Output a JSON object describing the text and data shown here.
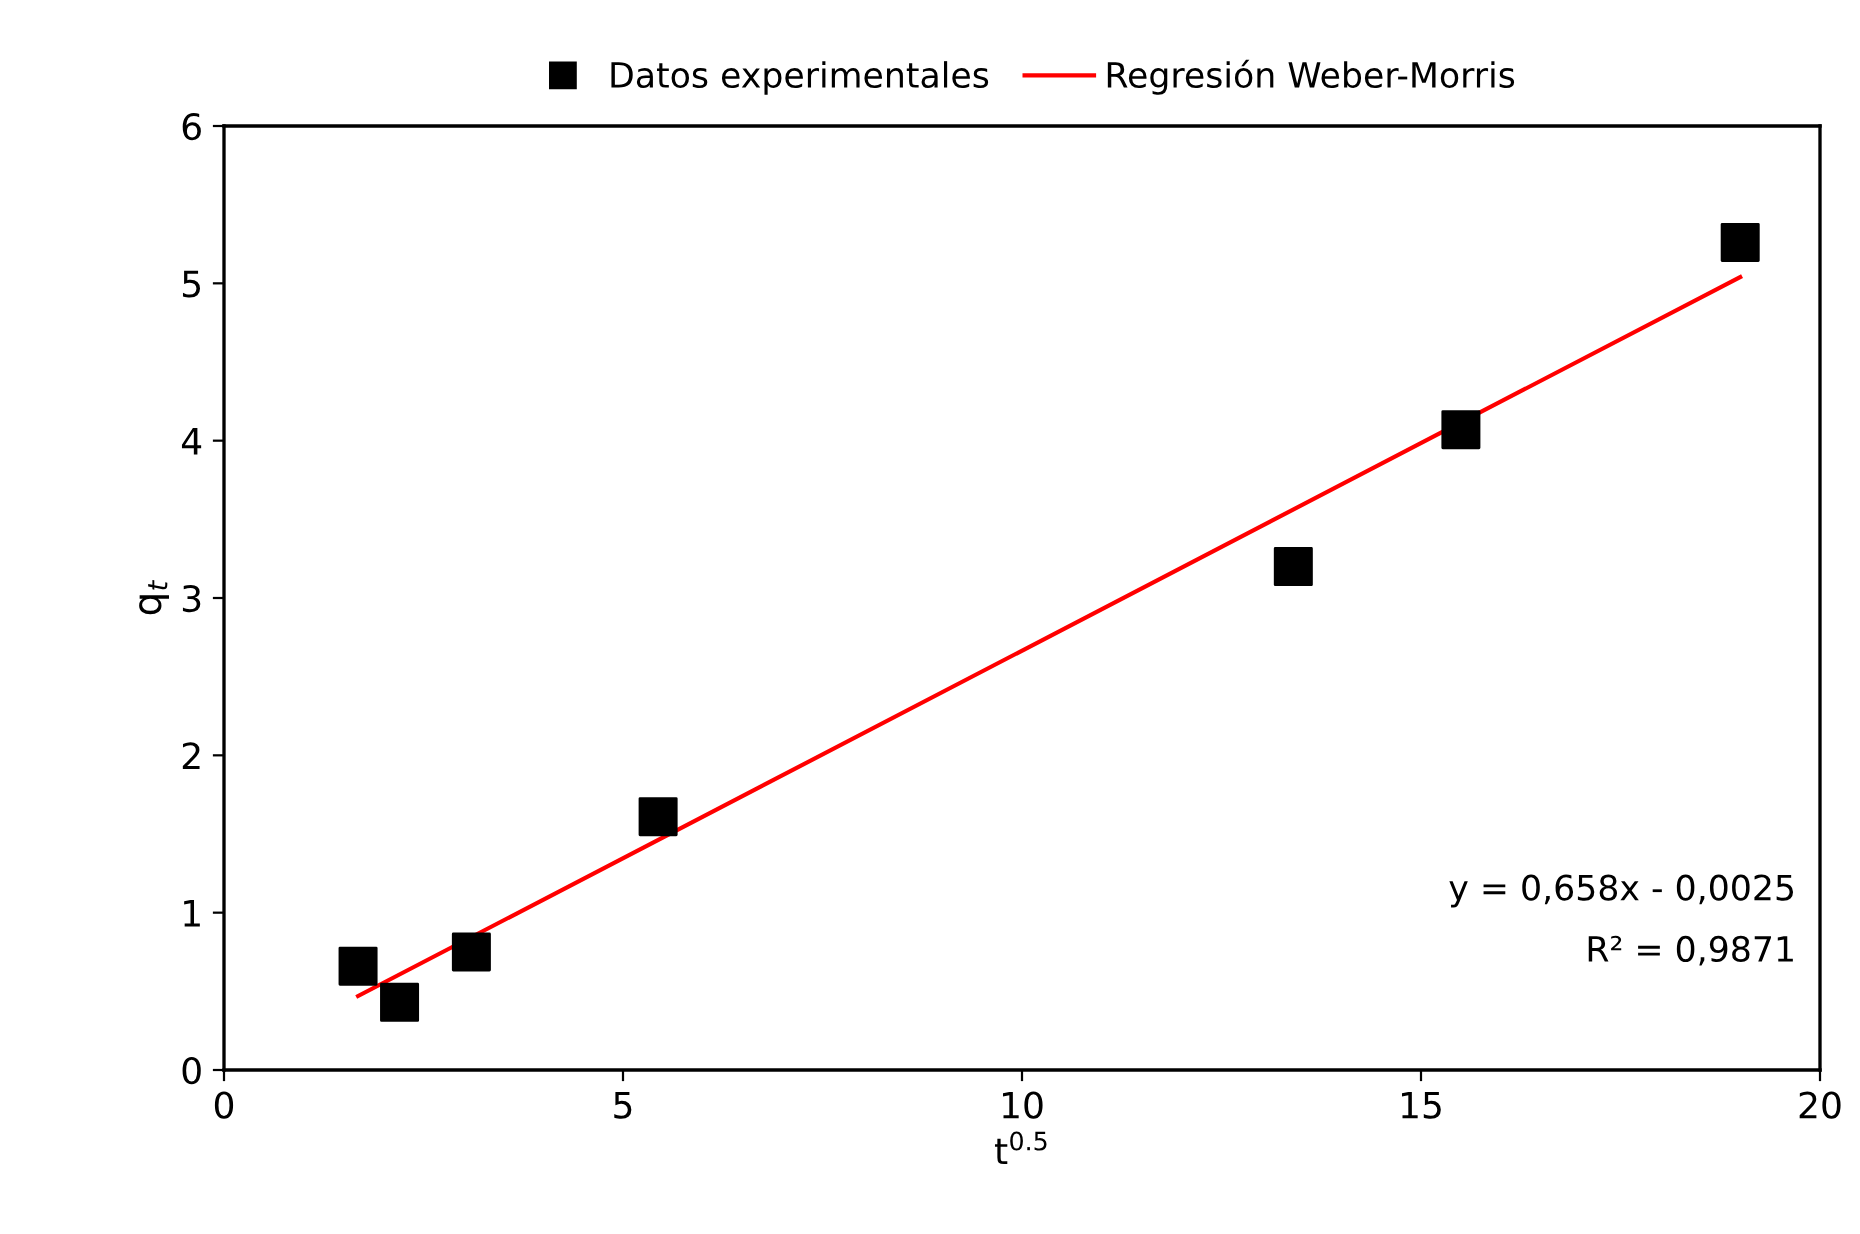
{
  "chart_data": {
    "type": "scatter",
    "xlabel": "t$^{0.5}$",
    "ylabel": "q$_{t}$",
    "xlim": [
      0,
      20
    ],
    "xticks": [
      0,
      5,
      10,
      15,
      20
    ],
    "ylim": [
      0,
      6
    ],
    "yticks": [
      0,
      1,
      2,
      3,
      4,
      5,
      6
    ],
    "grid": false,
    "legend": "top",
    "series": [
      {
        "name": "Datos experimentales",
        "marker": "square",
        "color": "#000000",
        "x": [
          1.68,
          2.2,
          3.1,
          5.44,
          13.4,
          15.5,
          19.0
        ],
        "values": [
          0.66,
          0.43,
          0.75,
          1.61,
          3.2,
          4.07,
          5.26
        ]
      },
      {
        "name": "Regresión Weber-Morris",
        "type": "line",
        "marker": "none",
        "color": "#ff0000",
        "x": [
          1.68,
          19.0
        ],
        "values": [
          0.47,
          5.04
        ]
      }
    ],
    "annotations": [
      "y = 0,658x - 0,0025",
      "R² = 0,9871"
    ]
  }
}
